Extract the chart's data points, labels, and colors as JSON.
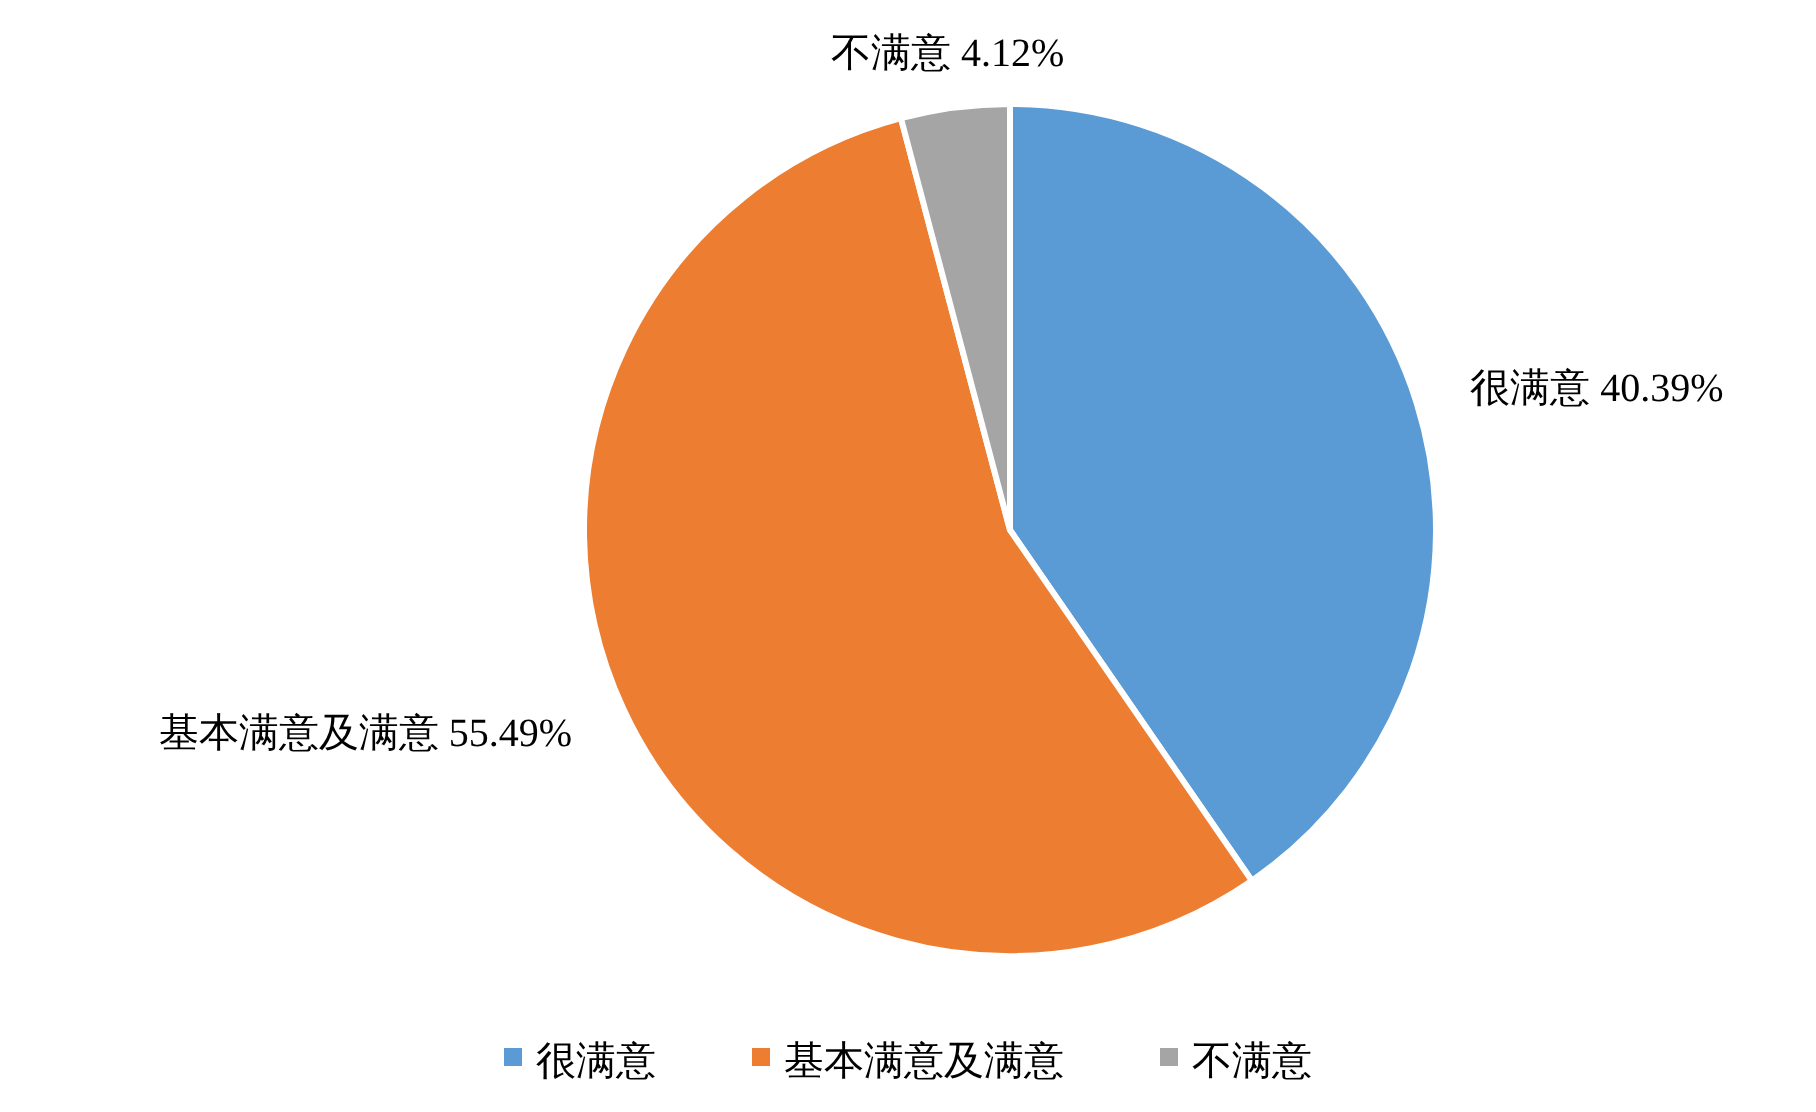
{
  "chart_data": {
    "type": "pie",
    "categories": [
      "很满意",
      "基本满意及满意",
      "不满意"
    ],
    "values": [
      40.39,
      55.49,
      4.12
    ],
    "colors": [
      "#5b9bd5",
      "#ed7d31",
      "#a5a5a5"
    ],
    "value_labels": [
      "40.39%",
      "55.49%",
      "4.12%"
    ],
    "legend": "bottom"
  }
}
